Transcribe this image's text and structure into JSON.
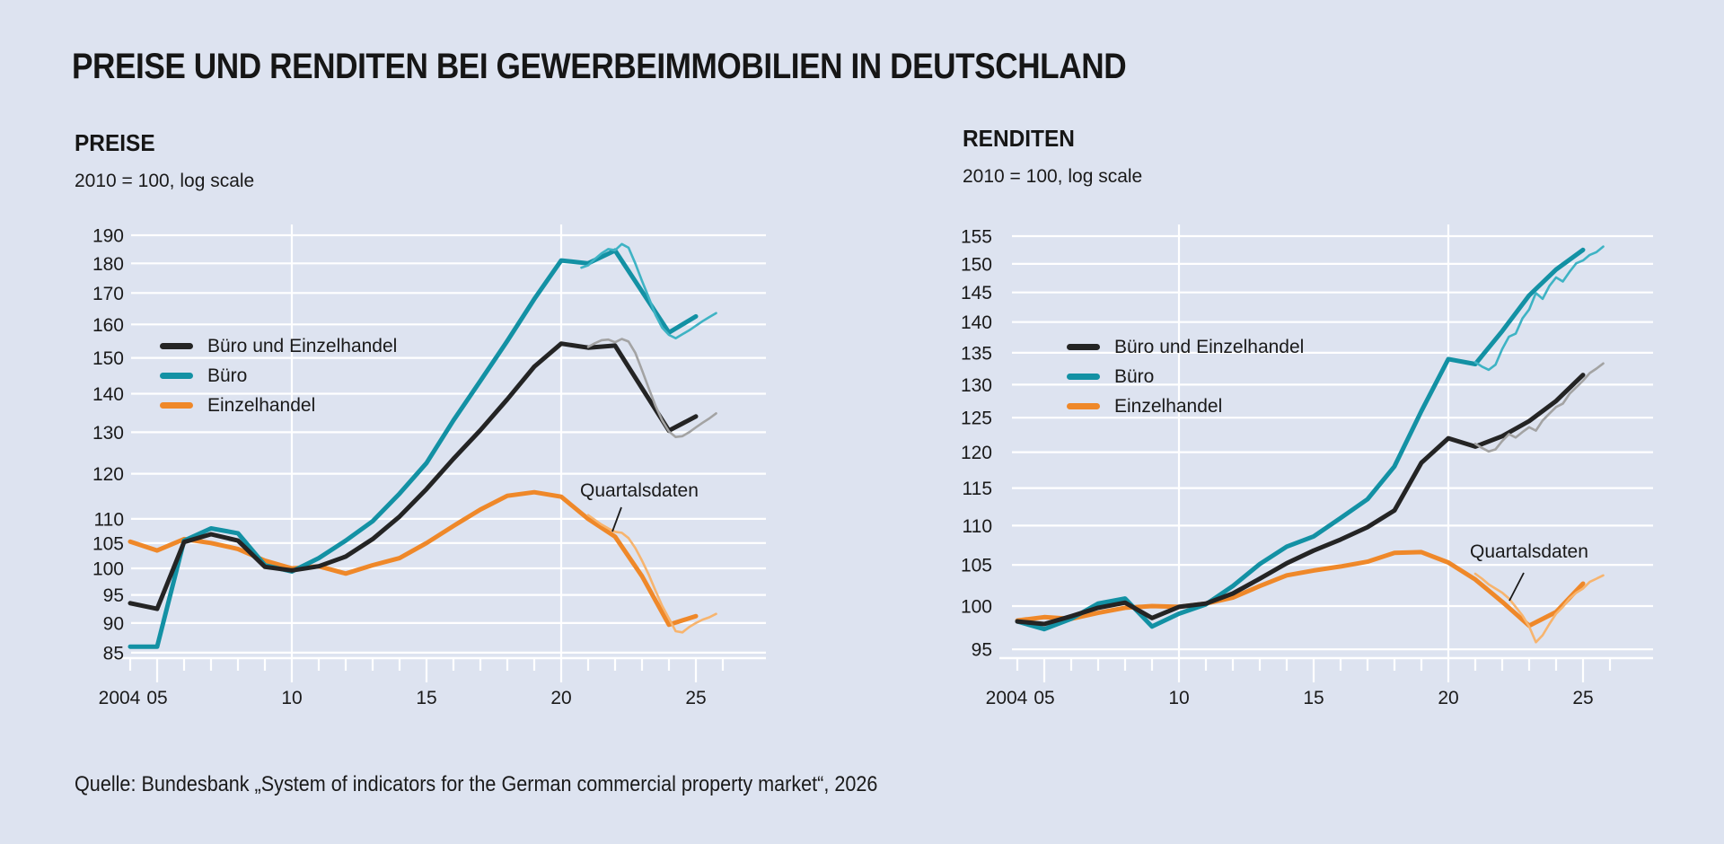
{
  "title": {
    "text": "PREISE UND RENDITEN BEI GEWERBEIMMOBILIEN IN DEUTSCHLAND"
  },
  "source": {
    "text": "Quelle: Bundesbank „System of indicators for the German commercial property market“, 2026"
  },
  "colors": {
    "background": "#dde3f0",
    "gridline": "#ffffff",
    "text": "#1a1a1a",
    "series_black": "#242424",
    "series_teal": "#1391a4",
    "series_orange": "#ef8829",
    "quarterly_gray": "#a3a3a3",
    "quarterly_teal": "#3eb3c4",
    "quarterly_orange": "#f7b46e"
  },
  "panels": [
    {
      "heading": "PREISE",
      "subtitle": "2010 = 100, log scale",
      "annotation": "Quartalsdaten",
      "legend": [
        {
          "label": "Büro und Einzelhandel",
          "color": "#242424"
        },
        {
          "label": "Büro",
          "color": "#1391a4"
        },
        {
          "label": "Einzelhandel",
          "color": "#ef8829"
        }
      ]
    },
    {
      "heading": "RENDITEN",
      "subtitle": "2010 = 100, log scale",
      "annotation": "Quartalsdaten",
      "legend": [
        {
          "label": "Büro und Einzelhandel",
          "color": "#242424"
        },
        {
          "label": "Büro",
          "color": "#1391a4"
        },
        {
          "label": "Einzelhandel",
          "color": "#ef8829"
        }
      ]
    }
  ],
  "chart_data": [
    {
      "type": "line",
      "title": "PREISE",
      "ylabel": "2010 = 100, log scale",
      "log_scale": true,
      "ylim": [
        83,
        196
      ],
      "y_ticks": [
        85,
        90,
        95,
        100,
        105,
        110,
        120,
        130,
        140,
        150,
        160,
        170,
        180,
        190
      ],
      "x_ticks": [
        {
          "year": 2004,
          "label": "2004"
        },
        {
          "year": 2005,
          "label": "05"
        },
        {
          "year": 2010,
          "label": "10"
        },
        {
          "year": 2015,
          "label": "15"
        },
        {
          "year": 2020,
          "label": "20"
        },
        {
          "year": 2025,
          "label": "25"
        }
      ],
      "vgrid_years": [
        2010,
        2020
      ],
      "years": [
        2004,
        2005,
        2006,
        2007,
        2008,
        2009,
        2010,
        2011,
        2012,
        2013,
        2014,
        2015,
        2016,
        2017,
        2018,
        2019,
        2020,
        2021,
        2022,
        2023,
        2024,
        2025
      ],
      "series": [
        {
          "name": "Einzelhandel",
          "color": "#ef8829",
          "values": [
            105.3,
            103.5,
            105.8,
            105.0,
            103.8,
            101.5,
            100.0,
            100.4,
            99.0,
            100.6,
            102.0,
            105.0,
            108.5,
            112.0,
            115.0,
            115.8,
            114.8,
            110.0,
            106.3,
            98.5,
            89.7,
            91.2
          ]
        },
        {
          "name": "Büro",
          "color": "#1391a4",
          "values": [
            86.0,
            86.0,
            105.5,
            108.0,
            107.0,
            100.6,
            99.4,
            102.0,
            105.5,
            109.5,
            115.5,
            122.5,
            133.0,
            143.5,
            155.0,
            168.0,
            181.0,
            180.0,
            184.5,
            170.5,
            157.5,
            162.5
          ]
        },
        {
          "name": "Büro und Einzelhandel",
          "color": "#242424",
          "values": [
            93.5,
            92.5,
            105.2,
            106.8,
            105.5,
            100.3,
            99.6,
            100.4,
            102.3,
            105.8,
            110.5,
            116.5,
            123.5,
            130.5,
            138.5,
            147.5,
            154.2,
            153.0,
            153.6,
            141.5,
            130.4,
            134.0
          ]
        }
      ],
      "quarterly_series": [
        {
          "name": "Büro und Einzelhandel (Quartalsdaten)",
          "color": "#a3a3a3",
          "x": [
            2021.0,
            2021.25,
            2021.5,
            2021.75,
            2022.0,
            2022.25,
            2022.5,
            2022.75,
            2023.0,
            2023.25,
            2023.5,
            2023.75,
            2024.0,
            2024.25,
            2024.5,
            2024.75,
            2025.0,
            2025.25,
            2025.5,
            2025.75
          ],
          "values": [
            153.2,
            154.3,
            155.2,
            155.4,
            154.6,
            155.6,
            154.8,
            151.5,
            146.5,
            141.5,
            136.8,
            133.0,
            130.2,
            128.8,
            129.0,
            130.0,
            131.2,
            132.4,
            133.5,
            134.8
          ]
        },
        {
          "name": "Büro (Quartalsdaten)",
          "color": "#3eb3c4",
          "x": [
            2020.75,
            2021.0,
            2021.25,
            2021.5,
            2021.75,
            2022.0,
            2022.25,
            2022.5,
            2022.75,
            2023.0,
            2023.25,
            2023.5,
            2023.75,
            2024.0,
            2024.25,
            2024.5,
            2024.75,
            2025.0,
            2025.25,
            2025.5,
            2025.75
          ],
          "values": [
            178.5,
            179.3,
            181.5,
            183.5,
            185.0,
            184.6,
            186.8,
            185.5,
            180.0,
            174.0,
            168.5,
            163.0,
            159.0,
            156.8,
            155.8,
            157.0,
            158.2,
            159.6,
            161.0,
            162.3,
            163.5
          ]
        },
        {
          "name": "Einzelhandel (Quartalsdaten)",
          "color": "#f7b46e",
          "x": [
            2021.0,
            2021.25,
            2021.5,
            2021.75,
            2022.0,
            2022.25,
            2022.5,
            2022.75,
            2023.0,
            2023.25,
            2023.5,
            2023.75,
            2024.0,
            2024.25,
            2024.5,
            2024.75,
            2025.0,
            2025.25,
            2025.5,
            2025.75
          ],
          "values": [
            110.8,
            109.8,
            108.8,
            108.0,
            107.3,
            107.1,
            106.0,
            104.0,
            101.5,
            98.8,
            95.8,
            93.0,
            90.8,
            88.6,
            88.4,
            89.3,
            90.0,
            90.6,
            91.0,
            91.6
          ]
        }
      ],
      "annotation": "Quartalsdaten"
    },
    {
      "type": "line",
      "title": "RENDITEN",
      "ylabel": "2010 = 100, log scale",
      "log_scale": true,
      "ylim": [
        93.5,
        156.5
      ],
      "y_ticks": [
        95,
        100,
        105,
        110,
        115,
        120,
        125,
        130,
        135,
        140,
        145,
        150,
        155
      ],
      "x_ticks": [
        {
          "year": 2004,
          "label": "2004"
        },
        {
          "year": 2005,
          "label": "05"
        },
        {
          "year": 2010,
          "label": "10"
        },
        {
          "year": 2015,
          "label": "15"
        },
        {
          "year": 2020,
          "label": "20"
        },
        {
          "year": 2025,
          "label": "25"
        }
      ],
      "vgrid_years": [
        2010,
        2020
      ],
      "years": [
        2004,
        2005,
        2006,
        2007,
        2008,
        2009,
        2010,
        2011,
        2012,
        2013,
        2014,
        2015,
        2016,
        2017,
        2018,
        2019,
        2020,
        2021,
        2022,
        2023,
        2024,
        2025
      ],
      "series": [
        {
          "name": "Einzelhandel",
          "color": "#ef8829",
          "values": [
            98.3,
            98.7,
            98.5,
            99.2,
            99.8,
            100.0,
            99.9,
            100.3,
            101.0,
            102.4,
            103.7,
            104.3,
            104.8,
            105.4,
            106.5,
            106.6,
            105.3,
            103.2,
            100.5,
            97.7,
            99.3,
            102.7
          ]
        },
        {
          "name": "Büro",
          "color": "#1391a4",
          "values": [
            98.2,
            97.3,
            98.5,
            100.3,
            100.9,
            97.6,
            99.1,
            100.2,
            102.4,
            105.1,
            107.3,
            108.6,
            111.0,
            113.5,
            118.0,
            126.0,
            134.0,
            133.2,
            138.5,
            144.5,
            149.0,
            152.5
          ]
        },
        {
          "name": "Büro und Einzelhandel",
          "color": "#242424",
          "values": [
            98.2,
            97.9,
            98.8,
            99.8,
            100.4,
            98.6,
            99.9,
            100.3,
            101.5,
            103.3,
            105.2,
            106.8,
            108.2,
            109.8,
            112.0,
            118.5,
            122.0,
            120.8,
            122.3,
            124.5,
            127.5,
            131.5
          ]
        }
      ],
      "quarterly_series": [
        {
          "name": "Büro und Einzelhandel (Quartalsdaten)",
          "color": "#a3a3a3",
          "x": [
            2021.0,
            2021.25,
            2021.5,
            2021.75,
            2022.0,
            2022.25,
            2022.5,
            2022.75,
            2023.0,
            2023.25,
            2023.5,
            2023.75,
            2024.0,
            2024.25,
            2024.5,
            2024.75,
            2025.0,
            2025.25,
            2025.5,
            2025.75
          ],
          "values": [
            121.2,
            120.6,
            120.1,
            120.4,
            121.6,
            122.6,
            122.1,
            122.9,
            123.6,
            123.1,
            124.6,
            125.6,
            126.6,
            127.1,
            128.6,
            129.6,
            130.6,
            131.8,
            132.5,
            133.3
          ]
        },
        {
          "name": "Büro (Quartalsdaten)",
          "color": "#3eb3c4",
          "x": [
            2021.0,
            2021.25,
            2021.5,
            2021.75,
            2022.0,
            2022.25,
            2022.5,
            2022.75,
            2023.0,
            2023.25,
            2023.5,
            2023.75,
            2024.0,
            2024.25,
            2024.5,
            2024.75,
            2025.0,
            2025.25,
            2025.5,
            2025.75
          ],
          "values": [
            133.5,
            132.8,
            132.3,
            133.1,
            135.6,
            137.6,
            138.1,
            140.6,
            142.1,
            144.9,
            143.9,
            146.1,
            147.6,
            146.9,
            148.6,
            150.1,
            150.6,
            151.6,
            152.1,
            153.1
          ]
        },
        {
          "name": "Einzelhandel (Quartalsdaten)",
          "color": "#f7b46e",
          "x": [
            2021.0,
            2021.25,
            2021.5,
            2021.75,
            2022.0,
            2022.25,
            2022.5,
            2022.75,
            2023.0,
            2023.25,
            2023.5,
            2023.75,
            2024.0,
            2024.25,
            2024.5,
            2024.75,
            2025.0,
            2025.25,
            2025.5,
            2025.75
          ],
          "values": [
            103.9,
            103.3,
            102.6,
            102.1,
            101.6,
            100.9,
            99.9,
            98.9,
            97.6,
            95.8,
            96.6,
            97.9,
            99.1,
            99.9,
            100.9,
            101.6,
            102.1,
            102.9,
            103.3,
            103.7
          ]
        }
      ],
      "annotation": "Quartalsdaten"
    }
  ]
}
